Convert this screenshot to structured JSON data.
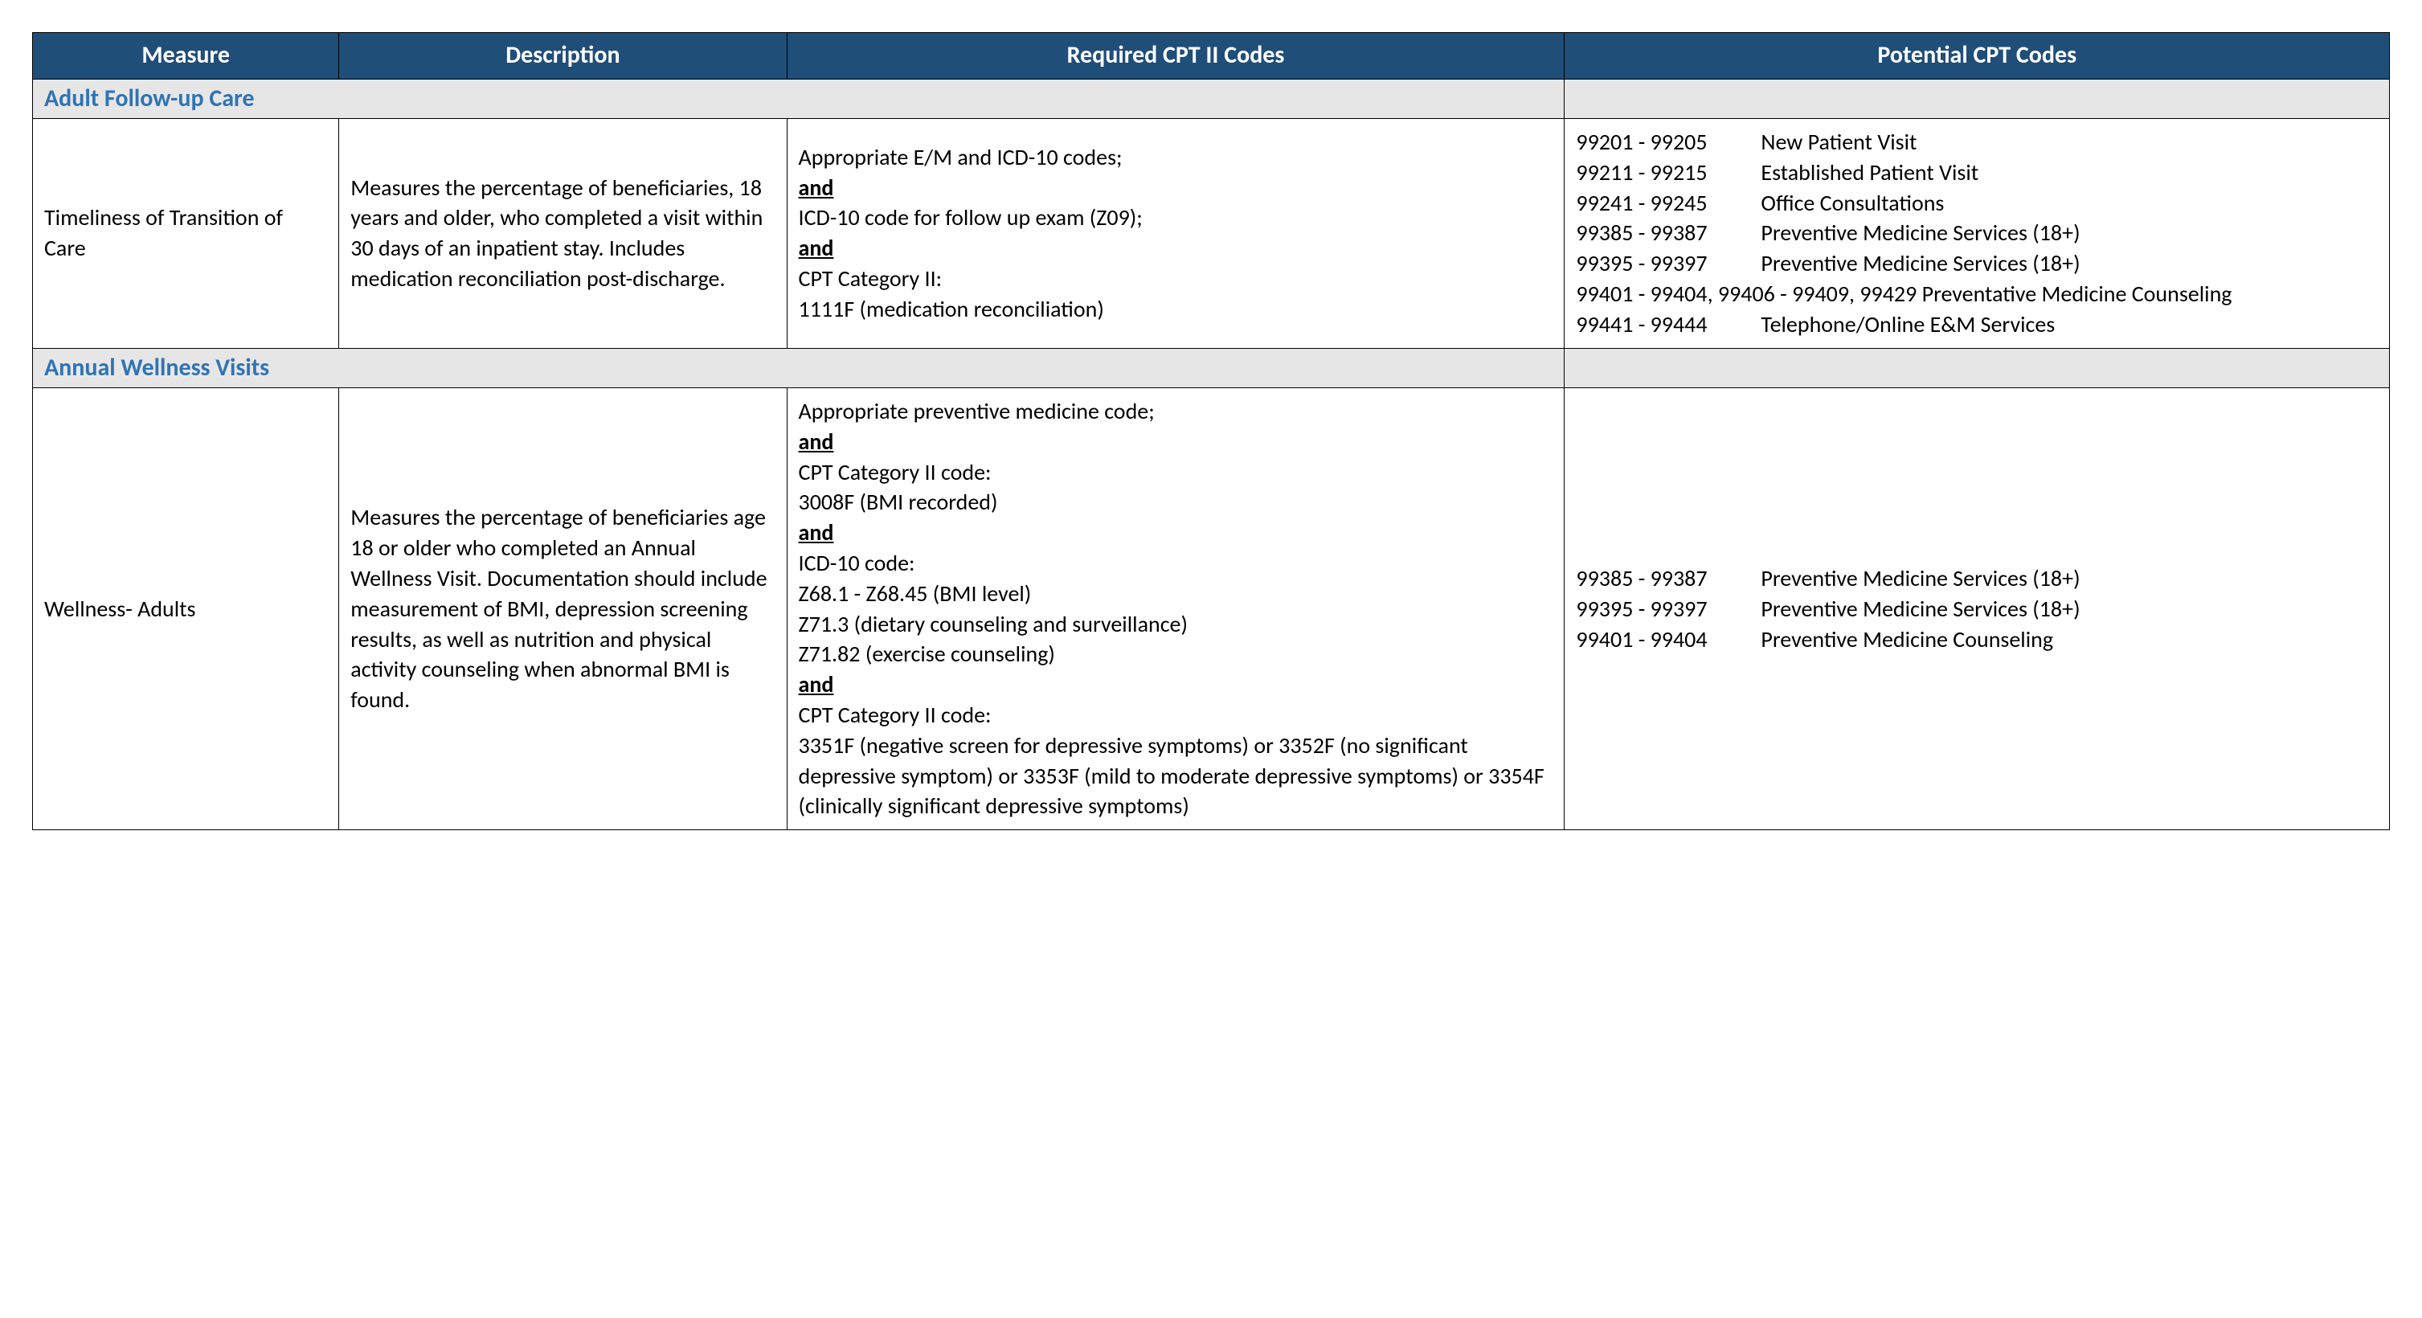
{
  "colors": {
    "header_bg": "#1f4e79",
    "header_fg": "#ffffff",
    "section_bg": "#e7e6e6",
    "section_fg": "#2e74b5",
    "border": "#000000",
    "text": "#000000",
    "page_bg": "#ffffff"
  },
  "typography": {
    "font_family": "Calibri, 'Segoe UI', Arial, sans-serif",
    "header_fontsize_pt": 15,
    "body_fontsize_pt": 14,
    "section_fontsize_pt": 15
  },
  "columns": [
    {
      "key": "measure",
      "label": "Measure",
      "width_pct": 13
    },
    {
      "key": "description",
      "label": "Description",
      "width_pct": 19
    },
    {
      "key": "required",
      "label": "Required CPT II Codes",
      "width_pct": 33
    },
    {
      "key": "potential",
      "label": "Potential CPT Codes",
      "width_pct": 35
    }
  ],
  "connector_word": "and",
  "sections": [
    {
      "title": "Adult Follow-up Care",
      "rows": [
        {
          "measure": "Timeliness of Transition of Care",
          "description": "Measures the percentage of beneficiaries, 18 years and older, who completed a visit within 30 days of an inpatient stay. Includes medication reconciliation post-discharge.",
          "required_blocks": [
            [
              "Appropriate E/M and ICD-10 codes;"
            ],
            [
              "ICD-10 code for follow up exam (Z09);"
            ],
            [
              "CPT Category II:",
              "1111F (medication reconciliation)"
            ]
          ],
          "potential_codes": [
            {
              "range": "99201 - 99205",
              "desc": "New Patient Visit"
            },
            {
              "range": "99211 - 99215",
              "desc": "Established Patient Visit"
            },
            {
              "range": "99241 - 99245",
              "desc": "Office Consultations"
            },
            {
              "range": "99385 - 99387",
              "desc": "Preventive Medicine Services (18+)"
            },
            {
              "range": "99395 - 99397",
              "desc": "Preventive Medicine Services (18+)"
            }
          ],
          "potential_extra_lines": [
            "99401 - 99404, 99406 - 99409, 99429 Preventative Medicine Counseling"
          ],
          "potential_codes_after": [
            {
              "range": "99441 - 99444",
              "desc": "Telephone/Online E&M Services"
            }
          ]
        }
      ]
    },
    {
      "title": "Annual Wellness Visits",
      "rows": [
        {
          "measure": "Wellness- Adults",
          "description": "Measures the percentage of beneficiaries age 18 or older who completed an Annual Wellness Visit. Documentation should include measurement of BMI, depression screening results, as well as nutrition and physical activity counseling when abnormal BMI is found.",
          "required_blocks": [
            [
              "Appropriate preventive medicine code;"
            ],
            [
              "CPT Category II code:",
              "3008F (BMI recorded)"
            ],
            [
              "ICD-10 code:",
              "Z68.1 - Z68.45 (BMI level)",
              "Z71.3 (dietary counseling and surveillance)",
              "Z71.82 (exercise counseling)"
            ],
            [
              "CPT Category II code:",
              "3351F (negative screen for depressive symptoms) or 3352F (no significant depressive symptom) or 3353F (mild to moderate depressive symptoms) or 3354F (clinically significant depressive symptoms)"
            ]
          ],
          "potential_codes": [
            {
              "range": "99385 - 99387",
              "desc": "Preventive Medicine Services (18+)"
            },
            {
              "range": "99395 - 99397",
              "desc": "Preventive Medicine Services (18+)"
            },
            {
              "range": "99401 - 99404",
              "desc": "Preventive Medicine Counseling"
            }
          ],
          "potential_extra_lines": [],
          "potential_codes_after": []
        }
      ]
    }
  ]
}
